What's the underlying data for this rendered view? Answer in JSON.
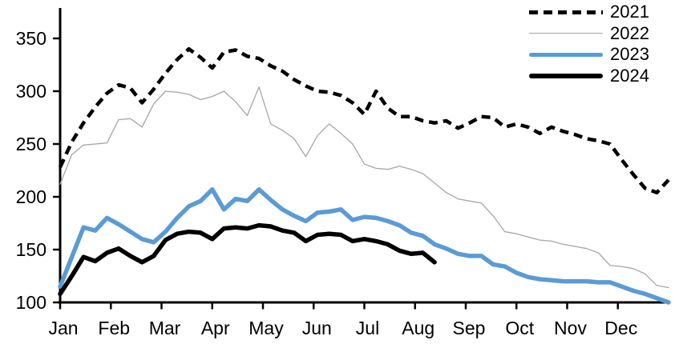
{
  "chart_data": {
    "type": "line",
    "title": "",
    "xlabel": "",
    "ylabel": "",
    "x_unit": "week-of-year",
    "months": [
      "Jan",
      "Feb",
      "Mar",
      "Apr",
      "May",
      "Jun",
      "Jul",
      "Aug",
      "Sep",
      "Oct",
      "Nov",
      "Dec"
    ],
    "y_ticks": [
      100,
      150,
      200,
      250,
      300,
      350
    ],
    "ylim": [
      100,
      360
    ],
    "grid": false,
    "legend_position": "top-right",
    "axis_color": "#000000",
    "series": [
      {
        "name": "2021",
        "color": "#000000",
        "style": "dashed",
        "width": 4.5,
        "values": [
          228,
          252,
          270,
          285,
          298,
          306,
          303,
          289,
          302,
          317,
          330,
          340,
          332,
          322,
          337,
          339,
          333,
          331,
          324,
          319,
          311,
          305,
          300,
          299,
          296,
          289,
          278,
          300,
          284,
          276,
          276,
          272,
          270,
          272,
          265,
          270,
          276,
          275,
          266,
          269,
          266,
          260,
          266,
          262,
          259,
          255,
          253,
          250,
          235,
          221,
          208,
          204,
          216
        ]
      },
      {
        "name": "2022",
        "color": "#a6a6a6",
        "style": "solid",
        "width": 1.3,
        "values": [
          212,
          240,
          249,
          250,
          251,
          273,
          274,
          266,
          288,
          300,
          299,
          297,
          292,
          295,
          300,
          290,
          277,
          304,
          269,
          263,
          255,
          238,
          258,
          269,
          260,
          250,
          231,
          227,
          226,
          229,
          226,
          222,
          213,
          204,
          198,
          196,
          194,
          182,
          167,
          165,
          162,
          159,
          158,
          155,
          153,
          151,
          147,
          135,
          134,
          132,
          127,
          116,
          114
        ]
      },
      {
        "name": "2023",
        "color": "#5b9bd5",
        "style": "solid",
        "width": 5.5,
        "values": [
          115,
          143,
          171,
          168,
          180,
          174,
          167,
          160,
          157,
          167,
          180,
          191,
          196,
          207,
          188,
          198,
          196,
          207,
          197,
          188,
          182,
          177,
          185,
          186,
          188,
          178,
          181,
          180,
          177,
          173,
          166,
          163,
          155,
          151,
          146,
          144,
          144,
          136,
          134,
          128,
          124,
          122,
          121,
          120,
          120,
          120,
          119,
          119,
          115,
          111,
          108,
          104,
          100
        ]
      },
      {
        "name": "2024",
        "color": "#000000",
        "style": "solid",
        "width": 5.5,
        "values": [
          108,
          125,
          143,
          139,
          147,
          151,
          144,
          138,
          144,
          159,
          165,
          167,
          166,
          160,
          170,
          171,
          170,
          173,
          172,
          168,
          166,
          158,
          164,
          165,
          164,
          158,
          160,
          158,
          155,
          149,
          146,
          147,
          138
        ]
      }
    ]
  },
  "legend": {
    "entries": [
      "2021",
      "2022",
      "2023",
      "2024"
    ]
  }
}
